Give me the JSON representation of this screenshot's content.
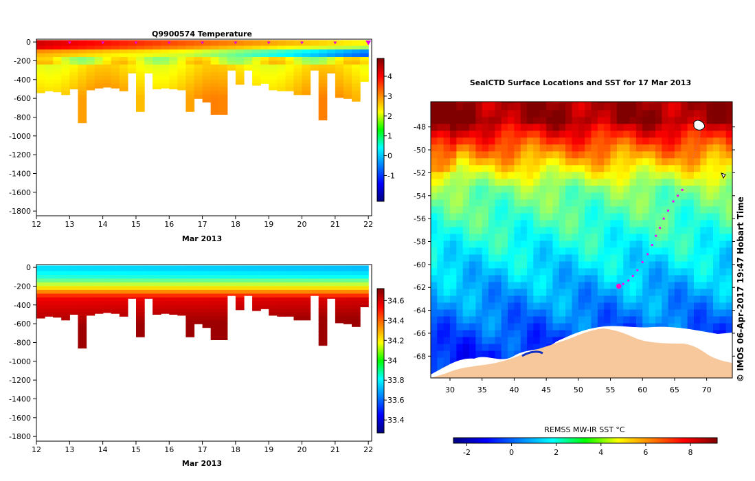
{
  "chart_data": [
    {
      "type": "heatmap",
      "title": "Q9900574  Temperature",
      "xlabel": "Mar 2013",
      "ylabel": "",
      "xlim": [
        12,
        22.1
      ],
      "ylim": [
        -1850,
        30
      ],
      "x_ticks": [
        "12",
        "13",
        "14",
        "15",
        "16",
        "17",
        "18",
        "19",
        "20",
        "21",
        "22"
      ],
      "y_ticks": [
        "0",
        "-200",
        "-400",
        "-600",
        "-800",
        "-1000",
        "-1200",
        "-1400",
        "-1600",
        "-1800"
      ],
      "colorbar": {
        "range": [
          -2.3,
          4.9
        ],
        "ticks": [
          "4",
          "3",
          "2",
          "1",
          "0",
          "-1"
        ]
      },
      "surface_markers_x": [
        13,
        14,
        15,
        16,
        17,
        18,
        19,
        20,
        21,
        22
      ],
      "profiles": {
        "x_start": [
          12.0,
          12.25,
          12.5,
          12.75,
          13.0,
          13.25,
          13.5,
          13.75,
          14.0,
          14.25,
          14.5,
          14.75,
          15.0,
          15.25,
          15.5,
          15.75,
          16.0,
          16.25,
          16.5,
          16.75,
          17.0,
          17.25,
          17.5,
          17.75,
          18.0,
          18.25,
          18.5,
          18.75,
          19.0,
          19.25,
          19.5,
          19.75,
          20.0,
          20.25,
          20.5,
          20.75,
          21.0,
          21.25,
          21.5,
          21.75
        ],
        "max_depth": [
          -540,
          -520,
          -530,
          -560,
          -500,
          -860,
          -510,
          -490,
          -480,
          -490,
          -520,
          -330,
          -740,
          -330,
          -500,
          -490,
          -500,
          -510,
          -740,
          -600,
          -640,
          -770,
          -770,
          -300,
          -450,
          -300,
          -460,
          -440,
          -510,
          -520,
          -520,
          -560,
          -560,
          -300,
          -830,
          -330,
          -590,
          -600,
          -630,
          -420
        ]
      }
    },
    {
      "type": "heatmap",
      "title": "",
      "xlabel": "Mar 2013",
      "ylabel": "",
      "xlim": [
        12,
        22.1
      ],
      "ylim": [
        -1850,
        30
      ],
      "x_ticks": [
        "12",
        "13",
        "14",
        "15",
        "16",
        "17",
        "18",
        "19",
        "20",
        "21",
        "22"
      ],
      "y_ticks": [
        "0",
        "-200",
        "-400",
        "-600",
        "-800",
        "-1000",
        "-1200",
        "-1400",
        "-1600",
        "-1800"
      ],
      "colorbar": {
        "range": [
          33.27,
          34.72
        ],
        "ticks": [
          "34.6",
          "34.4",
          "34.2",
          "34",
          "33.8",
          "33.6",
          "33.4"
        ]
      }
    },
    {
      "type": "heatmap",
      "title": "SealCTD Surface Locations and SST for 17 Mar 2013",
      "xlabel": "",
      "ylabel": "",
      "xlim": [
        27,
        74
      ],
      "ylim": [
        -69.9,
        -45.8
      ],
      "x_ticks": [
        "30",
        "35",
        "40",
        "45",
        "50",
        "55",
        "60",
        "65",
        "70"
      ],
      "y_ticks": [
        "-48",
        "-50",
        "-52",
        "-54",
        "-56",
        "-58",
        "-60",
        "-62",
        "-64",
        "-66",
        "-68"
      ],
      "colorbar": {
        "label": "REMSS MW-IR SST °C",
        "range": [
          -2.6,
          9.2
        ],
        "ticks": [
          "-2",
          "0",
          "2",
          "4",
          "6",
          "8"
        ]
      },
      "track": {
        "lon": [
          66.2,
          65.5,
          64.8,
          64.0,
          63.3,
          62.7,
          62.1,
          61.5,
          60.8,
          60.0,
          59.2,
          58.5,
          57.8,
          57.0
        ],
        "lat": [
          -53.5,
          -54.0,
          -54.5,
          -55.3,
          -56.0,
          -56.8,
          -57.5,
          -58.3,
          -59.1,
          -59.8,
          -60.5,
          -61.0,
          -61.4,
          -61.7
        ]
      },
      "current_location": {
        "lon": 56.3,
        "lat": -61.9
      }
    }
  ],
  "footer_stamp": "© IMOS 06-Apr-2017 19:47 Hobart Time"
}
